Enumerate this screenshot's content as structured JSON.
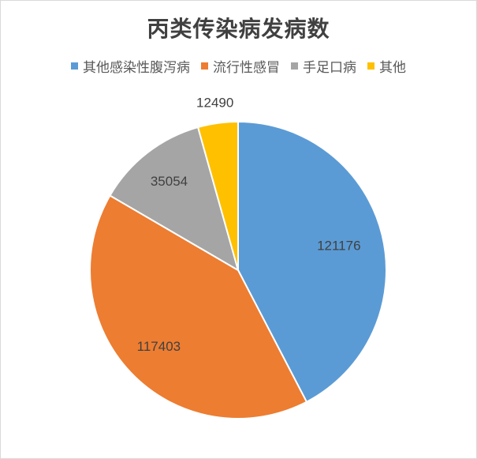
{
  "chart_data": {
    "type": "pie",
    "title": "丙类传染病发病数",
    "legend_position": "top",
    "slices": [
      {
        "label": "其他感染性腹泻病",
        "value": 121176,
        "color": "#5b9bd5"
      },
      {
        "label": "流行性感冒",
        "value": 117403,
        "color": "#ed7d31"
      },
      {
        "label": "手足口病",
        "value": 35054,
        "color": "#a5a5a5"
      },
      {
        "label": "其他",
        "value": 12490,
        "color": "#ffc000"
      }
    ]
  }
}
